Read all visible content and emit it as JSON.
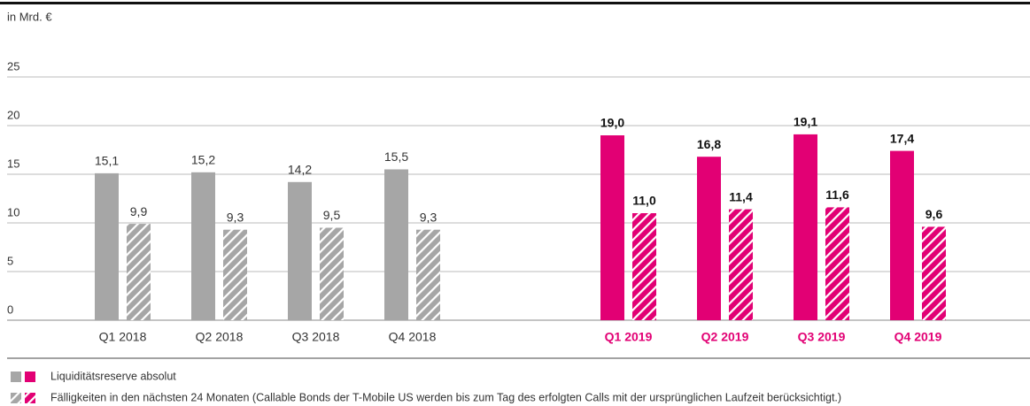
{
  "chart_data": {
    "type": "bar",
    "unit_label": "in Mrd. €",
    "categories": [
      "Q1 2018",
      "Q2 2018",
      "Q3 2018",
      "Q4 2018",
      "Q1 2019",
      "Q2 2019",
      "Q3 2019",
      "Q4 2019"
    ],
    "category_colors": [
      "#a6a6a6",
      "#a6a6a6",
      "#a6a6a6",
      "#a6a6a6",
      "#e20074",
      "#e20074",
      "#e20074",
      "#e20074"
    ],
    "highlight": [
      false,
      false,
      false,
      false,
      true,
      true,
      true,
      true
    ],
    "series": [
      {
        "name": "Liquiditätsreserve absolut",
        "pattern": "solid",
        "values": [
          15.1,
          15.2,
          14.2,
          15.5,
          19.0,
          16.8,
          19.1,
          17.4
        ],
        "value_labels": [
          "15,1",
          "15,2",
          "14,2",
          "15,5",
          "19,0",
          "16,8",
          "19,1",
          "17,4"
        ]
      },
      {
        "name": "Fälligkeiten in den nächsten 24 Monaten (Callable Bonds der T-Mobile US werden bis zum Tag des erfolgten Calls mit der ursprünglichen Laufzeit berücksichtigt.)",
        "pattern": "hatched",
        "values": [
          9.9,
          9.3,
          9.5,
          9.3,
          11.0,
          11.4,
          11.6,
          9.6
        ],
        "value_labels": [
          "9,9",
          "9,3",
          "9,5",
          "9,3",
          "11,0",
          "11,4",
          "11,6",
          "9,6"
        ]
      }
    ],
    "ylim": [
      0,
      25
    ],
    "yticks": [
      0,
      5,
      10,
      15,
      20,
      25
    ],
    "grid": true
  }
}
